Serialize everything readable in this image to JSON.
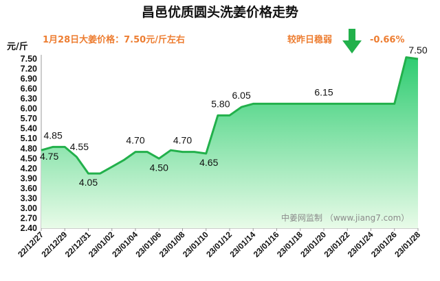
{
  "header": {
    "title": "昌邑优质圆头洗姜价格走势",
    "price_note": "1月28日大姜价格：7.50元/斤左右",
    "trend_text": "较昨日稳弱",
    "change_pct": "-0.66%",
    "unit": "元/斤",
    "watermark": "中姜网监制 （www.jiang7.com）"
  },
  "colors": {
    "line": "#22b04b",
    "fill_top": "#2ecc71",
    "fill_bottom": "#e8fbe8",
    "accent": "#ed7d31",
    "arrow": "#22b04b"
  },
  "chart_data": {
    "type": "area",
    "title": "昌邑优质圆头洗姜价格走势",
    "ylabel": "元/斤",
    "ylim": [
      2.4,
      7.5
    ],
    "yticks": [
      "7.50",
      "7.20",
      "6.90",
      "6.60",
      "6.30",
      "6.00",
      "5.70",
      "5.40",
      "5.10",
      "4.80",
      "4.50",
      "4.20",
      "3.90",
      "3.60",
      "3.30",
      "3.00",
      "2.70",
      "2.40"
    ],
    "xticks": [
      "22/12/27",
      "22/12/29",
      "22/12/31",
      "23/01/02",
      "23/01/04",
      "23/01/06",
      "23/01/08",
      "23/01/10",
      "23/01/12",
      "23/01/14",
      "23/01/16",
      "23/01/18",
      "23/01/20",
      "23/01/22",
      "23/01/24",
      "23/01/26",
      "23/01/28"
    ],
    "x": [
      "22/12/27",
      "22/12/28",
      "22/12/29",
      "22/12/30",
      "22/12/31",
      "23/01/01",
      "23/01/02",
      "23/01/03",
      "23/01/04",
      "23/01/05",
      "23/01/06",
      "23/01/07",
      "23/01/08",
      "23/01/09",
      "23/01/10",
      "23/01/11",
      "23/01/12",
      "23/01/13",
      "23/01/14",
      "23/01/15",
      "23/01/16",
      "23/01/17",
      "23/01/18",
      "23/01/19",
      "23/01/20",
      "23/01/21",
      "23/01/22",
      "23/01/23",
      "23/01/24",
      "23/01/25",
      "23/01/26",
      "23/01/27",
      "23/01/28"
    ],
    "values": [
      4.75,
      4.85,
      4.85,
      4.55,
      4.05,
      4.05,
      4.25,
      4.45,
      4.7,
      4.7,
      4.5,
      4.75,
      4.7,
      4.7,
      4.65,
      5.8,
      5.8,
      6.05,
      6.15,
      6.15,
      6.15,
      6.15,
      6.15,
      6.15,
      6.15,
      6.15,
      6.15,
      6.15,
      6.15,
      6.15,
      6.15,
      7.55,
      7.5
    ],
    "data_labels": [
      {
        "index": 0,
        "text": "4.75"
      },
      {
        "index": 1,
        "text": "4.85"
      },
      {
        "index": 3,
        "text": "4.55"
      },
      {
        "index": 4,
        "text": "4.05"
      },
      {
        "index": 8,
        "text": "4.70"
      },
      {
        "index": 10,
        "text": "4.50"
      },
      {
        "index": 12,
        "text": "4.70"
      },
      {
        "index": 14,
        "text": "4.65"
      },
      {
        "index": 15,
        "text": "5.80"
      },
      {
        "index": 17,
        "text": "6.05"
      },
      {
        "index": 24,
        "text": "6.15"
      },
      {
        "index": 32,
        "text": "7.50"
      }
    ]
  }
}
